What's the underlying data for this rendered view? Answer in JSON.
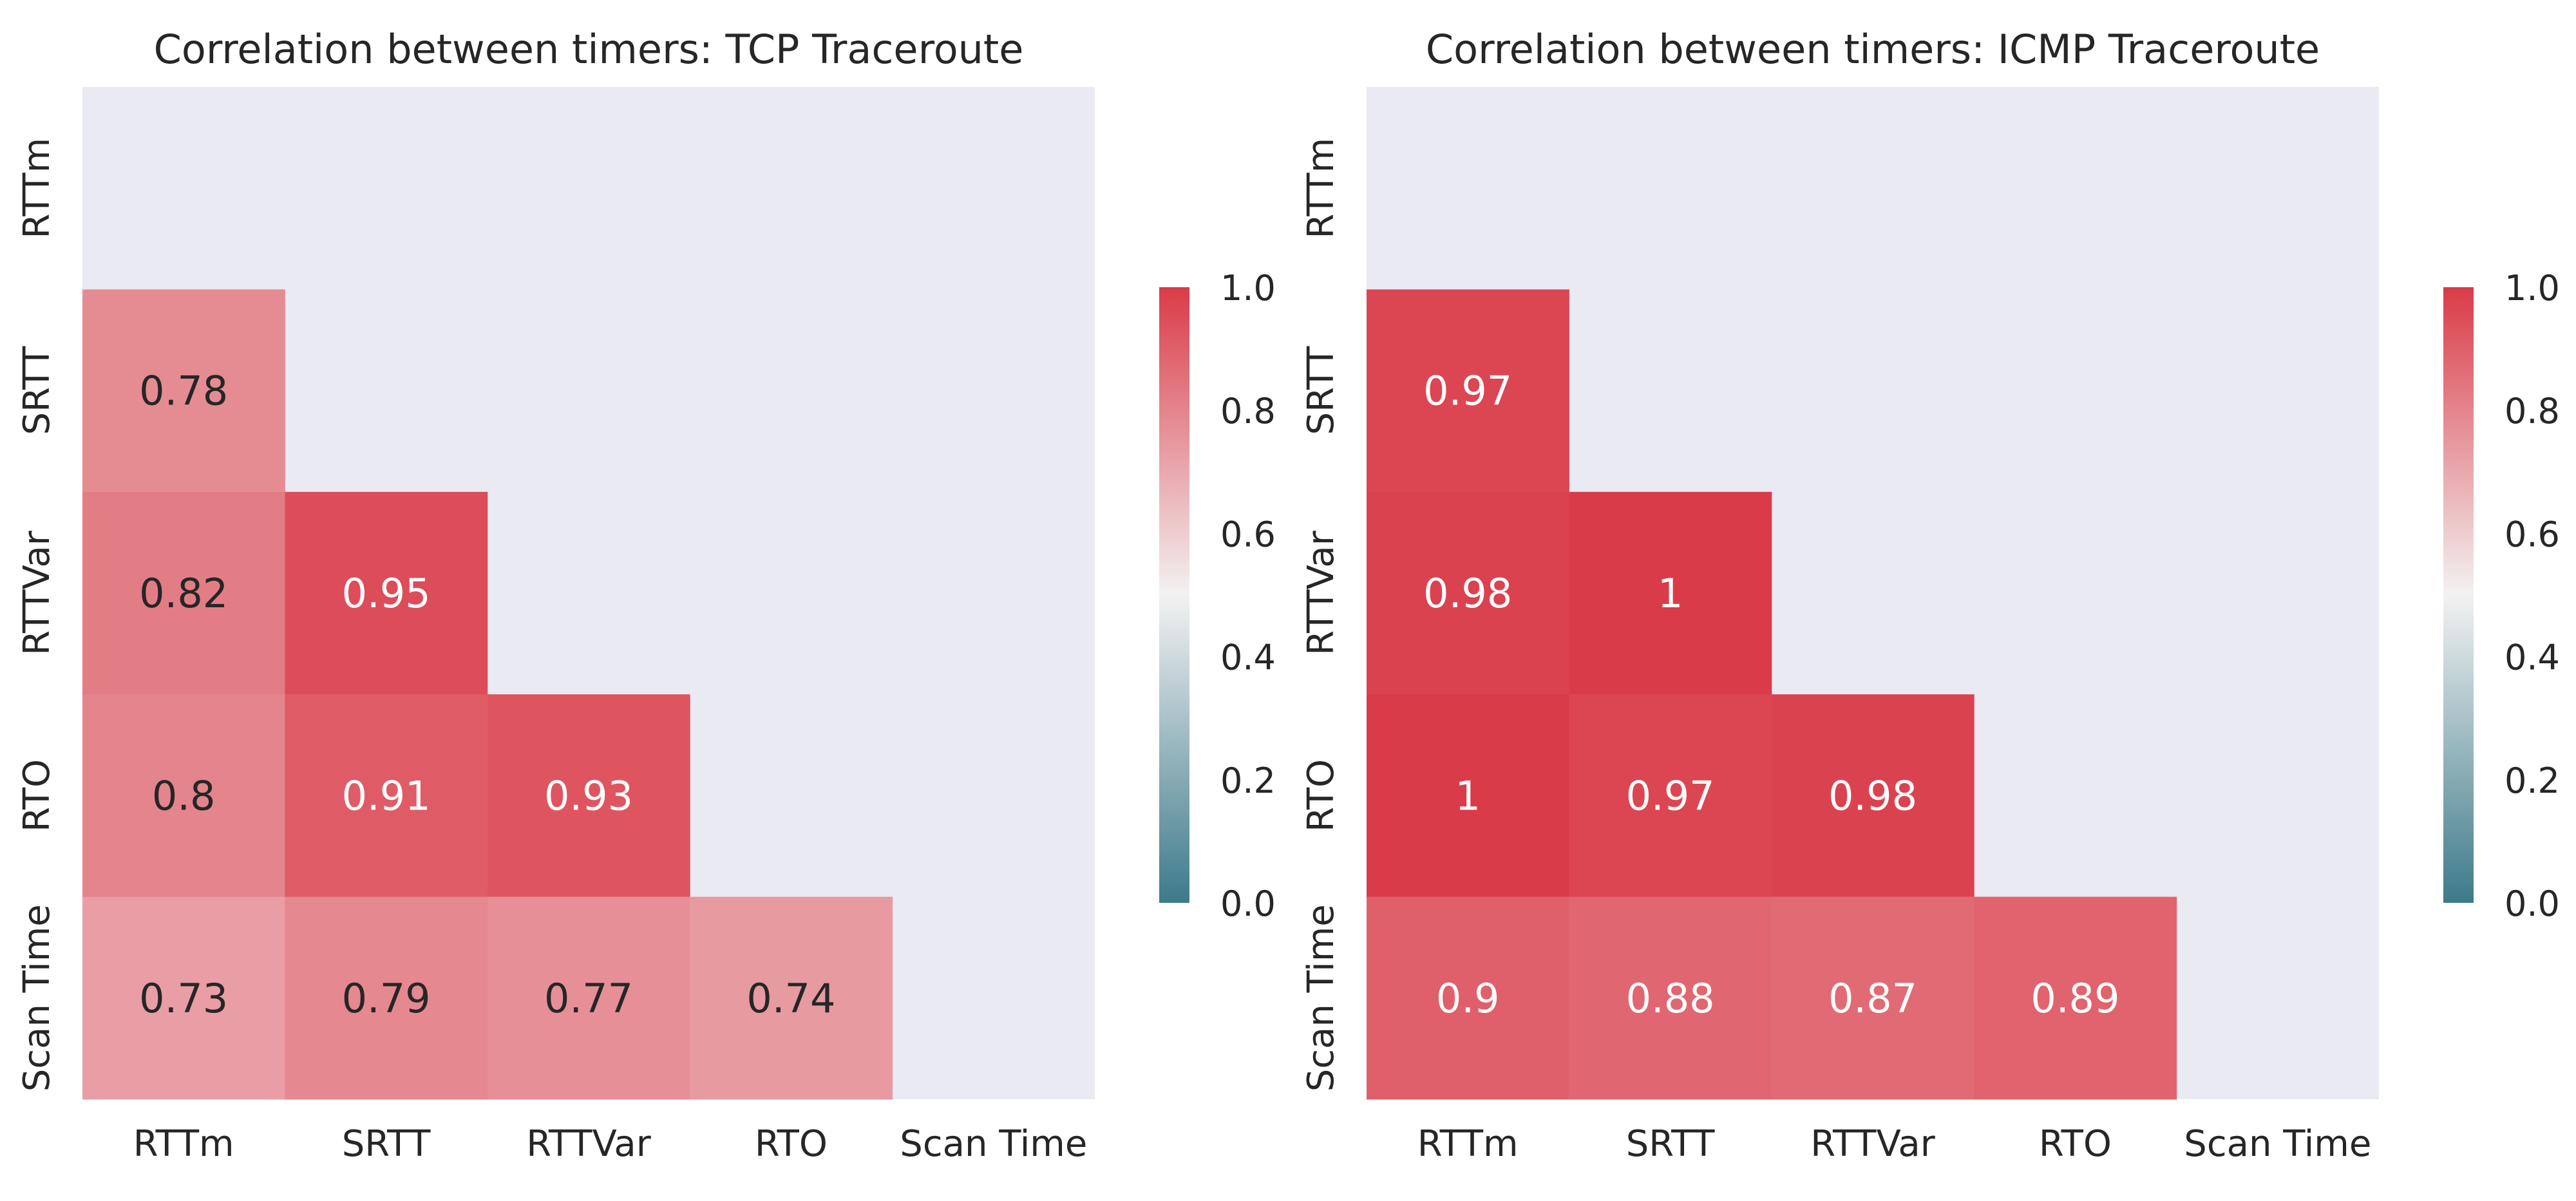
{
  "figure": {
    "colors": {
      "background": "#ffffff",
      "panel_bg": "#eaeaf2",
      "text": "#262626",
      "cmap_low": "#3d7a8a",
      "cmap_mid": "#f3f2f2",
      "cmap_high": "#da3b48"
    }
  },
  "chart_data": [
    {
      "type": "heatmap",
      "title": "Correlation between timers: TCP Traceroute",
      "x_labels": [
        "RTTm",
        "SRTT",
        "RTTVar",
        "RTO",
        "Scan Time"
      ],
      "y_labels": [
        "RTTm",
        "SRTT",
        "RTTVar",
        "RTO",
        "Scan Time"
      ],
      "mask": "upper-triangle-including-diagonal",
      "values": [
        [
          null,
          null,
          null,
          null,
          null
        ],
        [
          0.78,
          null,
          null,
          null,
          null
        ],
        [
          0.82,
          0.95,
          null,
          null,
          null
        ],
        [
          0.8,
          0.91,
          0.93,
          null,
          null
        ],
        [
          0.73,
          0.79,
          0.77,
          0.74,
          null
        ]
      ],
      "annotations": [
        [
          null,
          null,
          null,
          null,
          null
        ],
        [
          "0.78",
          null,
          null,
          null,
          null
        ],
        [
          "0.82",
          "0.95",
          null,
          null,
          null
        ],
        [
          "0.8",
          "0.91",
          "0.93",
          null,
          null
        ],
        [
          "0.73",
          "0.79",
          "0.77",
          "0.74",
          null
        ]
      ],
      "colorbar": {
        "range": [
          0.0,
          1.0
        ],
        "ticks": [
          0.0,
          0.2,
          0.4,
          0.6,
          0.8,
          1.0
        ],
        "tick_labels": [
          "0.0",
          "0.2",
          "0.4",
          "0.6",
          "0.8",
          "1.0"
        ]
      }
    },
    {
      "type": "heatmap",
      "title": "Correlation between timers: ICMP Traceroute",
      "x_labels": [
        "RTTm",
        "SRTT",
        "RTTVar",
        "RTO",
        "Scan Time"
      ],
      "y_labels": [
        "RTTm",
        "SRTT",
        "RTTVar",
        "RTO",
        "Scan Time"
      ],
      "mask": "upper-triangle-including-diagonal",
      "values": [
        [
          null,
          null,
          null,
          null,
          null
        ],
        [
          0.97,
          null,
          null,
          null,
          null
        ],
        [
          0.98,
          1.0,
          null,
          null,
          null
        ],
        [
          1.0,
          0.97,
          0.98,
          null,
          null
        ],
        [
          0.9,
          0.88,
          0.87,
          0.89,
          null
        ]
      ],
      "annotations": [
        [
          null,
          null,
          null,
          null,
          null
        ],
        [
          "0.97",
          null,
          null,
          null,
          null
        ],
        [
          "0.98",
          "1",
          null,
          null,
          null
        ],
        [
          "1",
          "0.97",
          "0.98",
          null,
          null
        ],
        [
          "0.9",
          "0.88",
          "0.87",
          "0.89",
          null
        ]
      ],
      "colorbar": {
        "range": [
          0.0,
          1.0
        ],
        "ticks": [
          0.0,
          0.2,
          0.4,
          0.6,
          0.8,
          1.0
        ],
        "tick_labels": [
          "0.0",
          "0.2",
          "0.4",
          "0.6",
          "0.8",
          "1.0"
        ]
      }
    }
  ]
}
